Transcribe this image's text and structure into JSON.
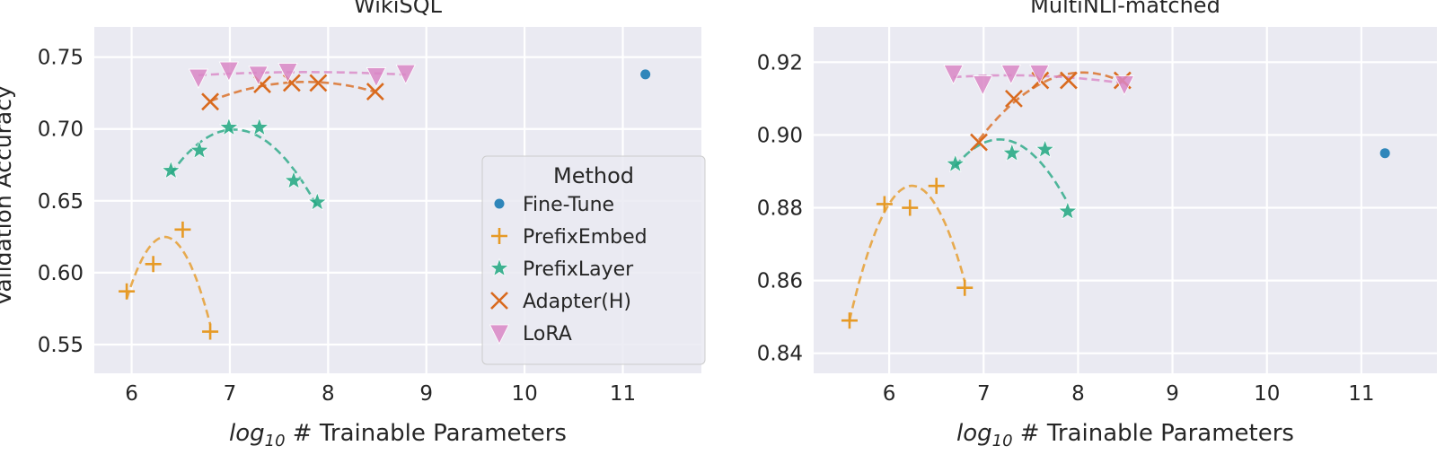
{
  "figure": {
    "ylabel": "Validation Accuracy"
  },
  "legend": {
    "title": "Method",
    "entries": [
      {
        "name": "Fine-Tune",
        "marker": "dot",
        "color": "#2f86ba"
      },
      {
        "name": "PrefixEmbed",
        "marker": "plus",
        "color": "#e69a26"
      },
      {
        "name": "PrefixLayer",
        "marker": "star",
        "color": "#26a883"
      },
      {
        "name": "Adapter(H)",
        "marker": "x",
        "color": "#d96a1e"
      },
      {
        "name": "LoRA",
        "marker": "tri",
        "color": "#d987c6"
      }
    ]
  },
  "chart_data": [
    {
      "type": "scatter",
      "title": "WikiSQL",
      "xlabel": "log10 # Trainable Parameters",
      "ylabel": "Validation Accuracy",
      "xlim": [
        5.62,
        11.8
      ],
      "ylim": [
        0.53,
        0.771
      ],
      "xticks": [
        6,
        7,
        8,
        9,
        10,
        11
      ],
      "yticks": [
        "0.55",
        "0.60",
        "0.65",
        "0.70",
        "0.75"
      ],
      "grid": true,
      "legend_position": "center-right",
      "series": [
        {
          "name": "Fine-Tune",
          "x": [
            11.23
          ],
          "y": [
            0.738
          ]
        },
        {
          "name": "PrefixEmbed",
          "x": [
            5.95,
            6.22,
            6.52,
            6.8
          ],
          "y": [
            0.587,
            0.606,
            0.63,
            0.559
          ]
        },
        {
          "name": "PrefixLayer",
          "x": [
            6.4,
            6.69,
            6.99,
            7.3,
            7.65,
            7.89
          ],
          "y": [
            0.671,
            0.685,
            0.701,
            0.701,
            0.664,
            0.649
          ]
        },
        {
          "name": "Adapter(H)",
          "x": [
            6.8,
            7.33,
            7.63,
            7.9,
            8.48
          ],
          "y": [
            0.719,
            0.731,
            0.732,
            0.732,
            0.726
          ]
        },
        {
          "name": "LoRA",
          "x": [
            6.68,
            6.99,
            7.29,
            7.59,
            8.49,
            8.79
          ],
          "y": [
            0.736,
            0.741,
            0.738,
            0.74,
            0.737,
            0.739
          ]
        }
      ],
      "fit_curves": [
        {
          "name": "PrefixEmbed",
          "x": [
            5.95,
            6.22,
            6.52,
            6.8
          ],
          "y": [
            0.587,
            0.606,
            0.63,
            0.559
          ]
        },
        {
          "name": "PrefixLayer",
          "x": [
            6.4,
            6.69,
            6.99,
            7.3,
            7.65,
            7.89
          ],
          "y": [
            0.671,
            0.685,
            0.701,
            0.701,
            0.664,
            0.649
          ]
        },
        {
          "name": "Adapter(H)",
          "x": [
            6.8,
            7.33,
            7.63,
            7.9,
            8.48
          ],
          "y": [
            0.719,
            0.731,
            0.732,
            0.732,
            0.726
          ]
        },
        {
          "name": "LoRA",
          "x": [
            6.68,
            6.99,
            7.29,
            7.59,
            8.49,
            8.79
          ],
          "y": [
            0.736,
            0.741,
            0.738,
            0.74,
            0.737,
            0.739
          ]
        }
      ]
    },
    {
      "type": "scatter",
      "title": "MultiNLI-matched",
      "xlabel": "log10 # Trainable Parameters",
      "ylabel": "",
      "xlim": [
        5.2,
        11.8
      ],
      "ylim": [
        0.8345,
        0.9297
      ],
      "xticks": [
        6,
        7,
        8,
        9,
        10,
        11
      ],
      "yticks": [
        "0.84",
        "0.86",
        "0.88",
        "0.90",
        "0.92"
      ],
      "grid": true,
      "series": [
        {
          "name": "Fine-Tune",
          "x": [
            11.25
          ],
          "y": [
            0.895
          ]
        },
        {
          "name": "PrefixEmbed",
          "x": [
            5.58,
            5.95,
            6.22,
            6.5,
            6.8
          ],
          "y": [
            0.849,
            0.881,
            0.88,
            0.886,
            0.858
          ]
        },
        {
          "name": "PrefixLayer",
          "x": [
            6.7,
            7.3,
            7.65,
            7.89
          ],
          "y": [
            0.892,
            0.895,
            0.896,
            0.879
          ]
        },
        {
          "name": "Adapter(H)",
          "x": [
            6.95,
            7.32,
            7.6,
            7.9,
            8.47
          ],
          "y": [
            0.898,
            0.91,
            0.915,
            0.915,
            0.915
          ]
        },
        {
          "name": "LoRA",
          "x": [
            6.68,
            6.99,
            7.29,
            7.59,
            8.49
          ],
          "y": [
            0.917,
            0.914,
            0.917,
            0.917,
            0.914
          ]
        }
      ],
      "fit_curves": [
        {
          "name": "PrefixEmbed",
          "x": [
            5.58,
            5.95,
            6.22,
            6.5,
            6.8
          ],
          "y": [
            0.849,
            0.881,
            0.88,
            0.886,
            0.858
          ]
        },
        {
          "name": "PrefixLayer",
          "x": [
            6.7,
            7.3,
            7.65,
            7.89
          ],
          "y": [
            0.892,
            0.895,
            0.896,
            0.879
          ]
        },
        {
          "name": "Adapter(H)",
          "x": [
            6.95,
            7.32,
            7.6,
            7.9,
            8.47
          ],
          "y": [
            0.898,
            0.91,
            0.915,
            0.915,
            0.915
          ]
        },
        {
          "name": "LoRA",
          "x": [
            6.68,
            6.99,
            7.29,
            7.59,
            8.49
          ],
          "y": [
            0.917,
            0.914,
            0.917,
            0.917,
            0.914
          ]
        }
      ]
    }
  ]
}
